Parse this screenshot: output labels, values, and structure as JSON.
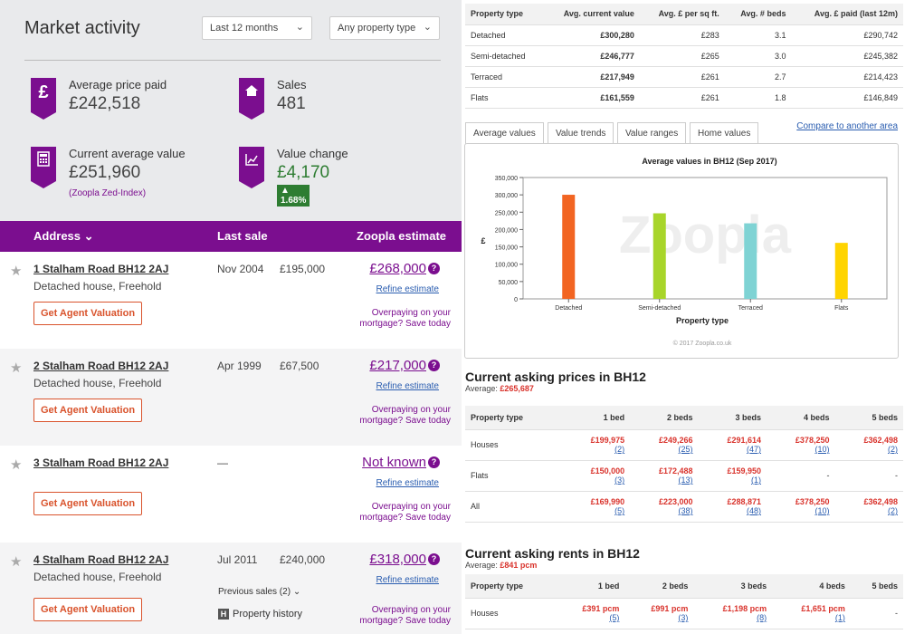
{
  "market": {
    "title": "Market activity",
    "period": "Last 12 months",
    "property_type": "Any property type",
    "avg_price_label": "Average price paid",
    "avg_price_value": "£242,518",
    "sales_label": "Sales",
    "sales_value": "481",
    "current_label": "Current average value",
    "current_value": "£251,960",
    "current_note": "(Zoopla Zed-Index)",
    "change_label": "Value change",
    "change_value": "£4,170",
    "change_pct": "▲ 1.68%"
  },
  "listing": {
    "col_address": "Address",
    "col_last_sale": "Last sale",
    "col_estimate": "Zoopla estimate",
    "rows": [
      {
        "address": "1 Stalham Road BH12 2AJ",
        "desc": "Detached house, Freehold",
        "date": "Nov 2004",
        "price": "£195,000",
        "estimate": "£268,000"
      },
      {
        "address": "2 Stalham Road BH12 2AJ",
        "desc": "Detached house, Freehold",
        "date": "Apr 1999",
        "price": "£67,500",
        "estimate": "£217,000"
      },
      {
        "address": "3 Stalham Road BH12 2AJ",
        "desc": "",
        "date": "—",
        "price": "",
        "estimate": "Not known"
      },
      {
        "address": "4 Stalham Road BH12 2AJ",
        "desc": "Detached house, Freehold",
        "date": "Jul 2011",
        "price": "£240,000",
        "estimate": "£318,000"
      }
    ],
    "button_label": "Get Agent Valuation",
    "refine_label": "Refine estimate",
    "overpaying": "Overpaying on your mortgage? Save today",
    "previous_sales": "Previous sales (2)",
    "history": "Property history",
    "history_icon": "H"
  },
  "prices_table": {
    "headers": [
      "Property type",
      "Avg. current value",
      "Avg. £ per sq ft.",
      "Avg. # beds",
      "Avg. £ paid (last 12m)"
    ],
    "rows": [
      [
        "Detached",
        "£300,280",
        "£283",
        "3.1",
        "£290,742"
      ],
      [
        "Semi-detached",
        "£246,777",
        "£265",
        "3.0",
        "£245,382"
      ],
      [
        "Terraced",
        "£217,949",
        "£261",
        "2.7",
        "£214,423"
      ],
      [
        "Flats",
        "£161,559",
        "£261",
        "1.8",
        "£146,849"
      ]
    ]
  },
  "tabs": [
    "Average values",
    "Value trends",
    "Value ranges",
    "Home values"
  ],
  "compare_link": "Compare to another area",
  "chart_data": {
    "type": "bar",
    "title": "Average values in BH12 (Sep 2017)",
    "xlabel": "Property type",
    "ylabel": "£",
    "categories": [
      "Detached",
      "Semi-detached",
      "Terraced",
      "Flats"
    ],
    "values": [
      300280,
      246777,
      217949,
      161559
    ],
    "colors": [
      "#f26522",
      "#a8d52a",
      "#7fd3d4",
      "#ffd400"
    ],
    "ylim": [
      0,
      350000
    ],
    "yticks": [
      "0",
      "50,000",
      "100,000",
      "150,000",
      "200,000",
      "250,000",
      "300,000",
      "350,000"
    ],
    "watermark": "Zoopla",
    "credit": "© 2017 Zoopla.co.uk",
    "grid": false
  },
  "asking_prices": {
    "title": "Current asking prices in BH12",
    "avg_label": "Average:",
    "avg_value": "£265,687",
    "headers": [
      "Property type",
      "1 bed",
      "2 beds",
      "3 beds",
      "4 beds",
      "5 beds"
    ],
    "rows": [
      {
        "type": "Houses",
        "cells": [
          [
            "£199,975",
            "(2)"
          ],
          [
            "£249,266",
            "(25)"
          ],
          [
            "£291,614",
            "(47)"
          ],
          [
            "£378,250",
            "(10)"
          ],
          [
            "£362,498",
            "(2)"
          ]
        ]
      },
      {
        "type": "Flats",
        "cells": [
          [
            "£150,000",
            "(3)"
          ],
          [
            "£172,488",
            "(13)"
          ],
          [
            "£159,950",
            "(1)"
          ],
          [
            "-",
            ""
          ],
          [
            "-",
            ""
          ]
        ]
      },
      {
        "type": "All",
        "cells": [
          [
            "£169,990",
            "(5)"
          ],
          [
            "£223,000",
            "(38)"
          ],
          [
            "£288,871",
            "(48)"
          ],
          [
            "£378,250",
            "(10)"
          ],
          [
            "£362,498",
            "(2)"
          ]
        ]
      }
    ]
  },
  "asking_rents": {
    "title": "Current asking rents in BH12",
    "avg_label": "Average:",
    "avg_value": "£841 pcm",
    "headers": [
      "Property type",
      "1 bed",
      "2 beds",
      "3 beds",
      "4 beds",
      "5 beds"
    ],
    "rows": [
      {
        "type": "Houses",
        "cells": [
          [
            "£391 pcm",
            "(5)"
          ],
          [
            "£991 pcm",
            "(3)"
          ],
          [
            "£1,198 pcm",
            "(8)"
          ],
          [
            "£1,651 pcm",
            "(1)"
          ],
          [
            "-",
            ""
          ]
        ]
      }
    ]
  }
}
